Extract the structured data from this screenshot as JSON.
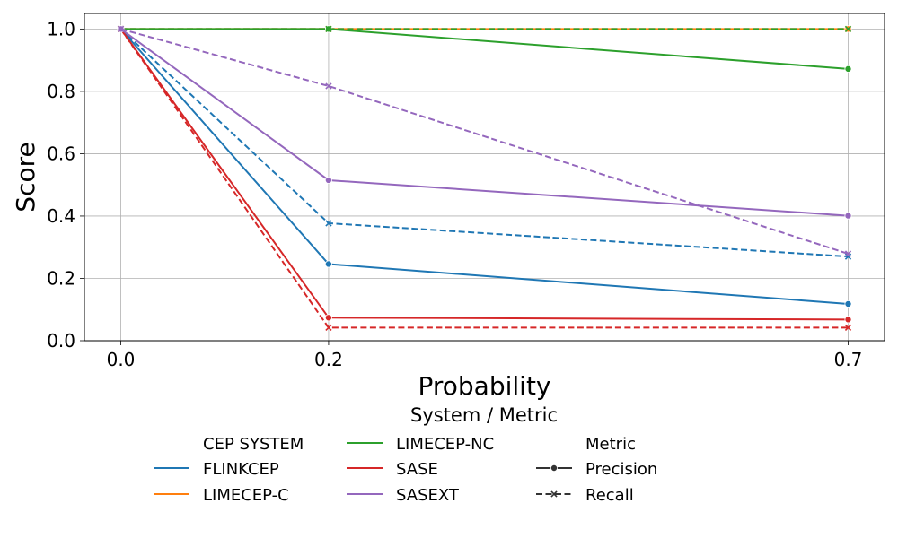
{
  "chart_data": {
    "type": "line",
    "title": "",
    "xlabel": "Probability",
    "ylabel": "Score",
    "x": [
      0.0,
      0.2,
      0.7
    ],
    "x_tick_labels": [
      "0.0",
      "0.2",
      "0.7"
    ],
    "xlim": [
      -0.035,
      0.735
    ],
    "ylim": [
      0.0,
      1.05
    ],
    "y_ticks": [
      0.0,
      0.2,
      0.4,
      0.6,
      0.8,
      1.0
    ],
    "y_tick_labels": [
      "0.0",
      "0.2",
      "0.4",
      "0.6",
      "0.8",
      "1.0"
    ],
    "grid": true,
    "series": [
      {
        "system": "FLINKCEP",
        "metric": "Precision",
        "color": "#1f77b4",
        "values": [
          1.0,
          0.246,
          0.118
        ]
      },
      {
        "system": "FLINKCEP",
        "metric": "Recall",
        "color": "#1f77b4",
        "values": [
          1.0,
          0.377,
          0.27
        ]
      },
      {
        "system": "LIMECEP-C",
        "metric": "Precision",
        "color": "#ff7f0e",
        "values": [
          1.0,
          1.0,
          1.0
        ]
      },
      {
        "system": "LIMECEP-C",
        "metric": "Recall",
        "color": "#ff7f0e",
        "values": [
          1.0,
          1.0,
          1.0
        ]
      },
      {
        "system": "LIMECEP-NC",
        "metric": "Precision",
        "color": "#2ca02c",
        "values": [
          1.0,
          1.0,
          0.872
        ]
      },
      {
        "system": "LIMECEP-NC",
        "metric": "Recall",
        "color": "#2ca02c",
        "values": [
          1.0,
          1.0,
          1.0
        ]
      },
      {
        "system": "SASE",
        "metric": "Precision",
        "color": "#d62728",
        "values": [
          1.0,
          0.074,
          0.068
        ]
      },
      {
        "system": "SASE",
        "metric": "Recall",
        "color": "#d62728",
        "values": [
          1.0,
          0.042,
          0.042
        ]
      },
      {
        "system": "SASEXT",
        "metric": "Precision",
        "color": "#9467bd",
        "values": [
          1.0,
          0.515,
          0.401
        ]
      },
      {
        "system": "SASEXT",
        "metric": "Recall",
        "color": "#9467bd",
        "values": [
          1.0,
          0.817,
          0.279
        ]
      }
    ],
    "legend": {
      "title": "System / Metric",
      "placement": "bottom",
      "entries": [
        {
          "kind": "header",
          "label": "CEP SYSTEM"
        },
        {
          "kind": "system",
          "label": "FLINKCEP",
          "color": "#1f77b4"
        },
        {
          "kind": "system",
          "label": "LIMECEP-C",
          "color": "#ff7f0e"
        },
        {
          "kind": "system",
          "label": "LIMECEP-NC",
          "color": "#2ca02c"
        },
        {
          "kind": "system",
          "label": "SASE",
          "color": "#d62728"
        },
        {
          "kind": "system",
          "label": "SASEXT",
          "color": "#9467bd"
        },
        {
          "kind": "header",
          "label": "Metric"
        },
        {
          "kind": "metric",
          "label": "Precision",
          "marker": "circle",
          "dash": false
        },
        {
          "kind": "metric",
          "label": "Recall",
          "marker": "x",
          "dash": true
        }
      ]
    }
  }
}
